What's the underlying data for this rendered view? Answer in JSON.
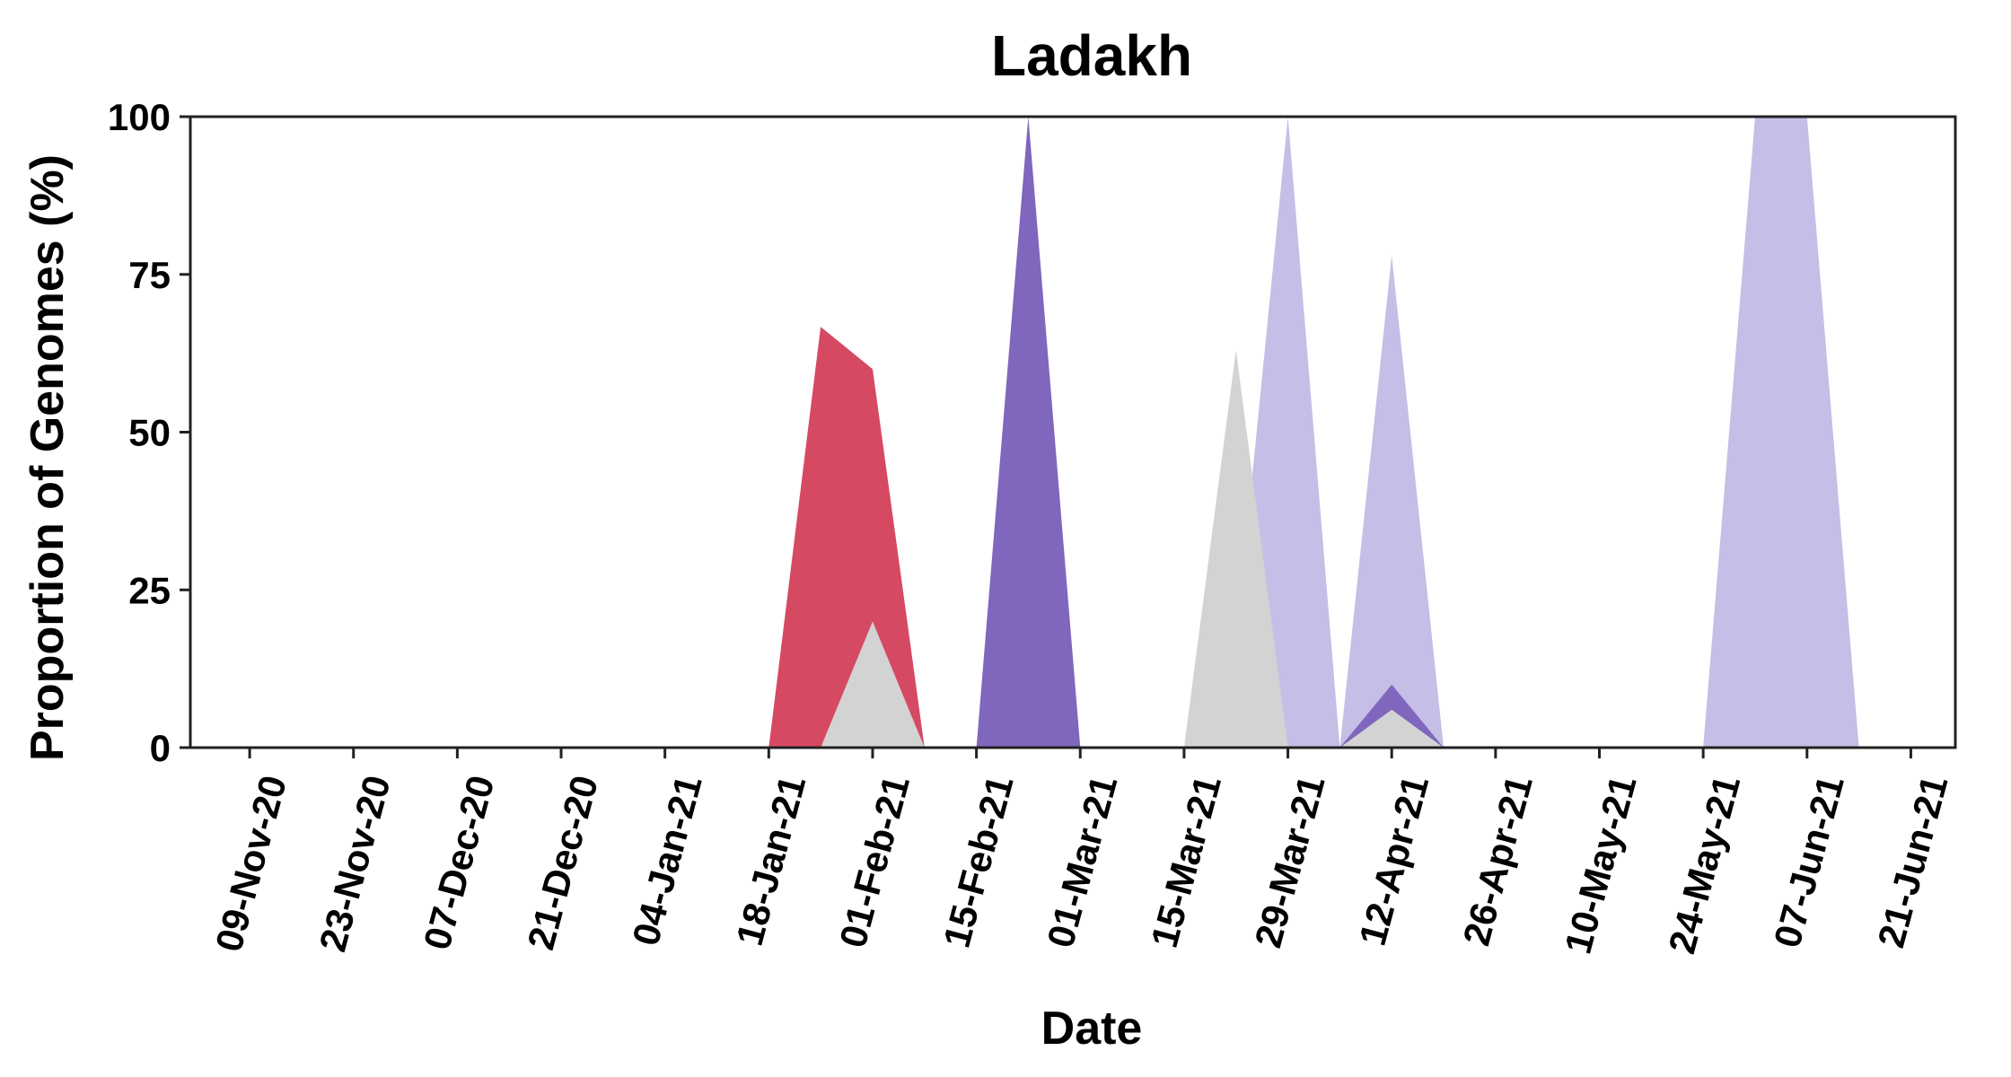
{
  "chart_data": {
    "type": "area",
    "title": "Ladakh",
    "xlabel": "Date",
    "ylabel": "Proportion of Genomes (%)",
    "ylim": [
      0,
      100
    ],
    "yticks": [
      "0",
      "25",
      "50",
      "75",
      "100"
    ],
    "x_tick_labels": [
      "09-Nov-20",
      "23-Nov-20",
      "07-Dec-20",
      "21-Dec-20",
      "04-Jan-21",
      "18-Jan-21",
      "01-Feb-21",
      "15-Feb-21",
      "01-Mar-21",
      "15-Mar-21",
      "29-Mar-21",
      "12-Apr-21",
      "26-Apr-21",
      "10-May-21",
      "24-May-21",
      "07-Jun-21",
      "21-Jun-21"
    ],
    "xlim": [
      "2020-11-01",
      "2021-06-27"
    ],
    "series": [
      {
        "color": "#36b5db",
        "points": [
          [
            "2021-01-18",
            0
          ],
          [
            "2021-01-25",
            33.3
          ],
          [
            "2021-02-01",
            20
          ],
          [
            "2021-02-08",
            0
          ]
        ]
      },
      {
        "color": "#d64963",
        "points": [
          [
            "2021-01-18",
            0
          ],
          [
            "2021-01-25",
            66.7
          ],
          [
            "2021-02-01",
            60
          ],
          [
            "2021-02-08",
            0
          ]
        ]
      },
      {
        "color": "#d3d3d3",
        "points": [
          [
            "2021-01-18",
            0
          ],
          [
            "2021-01-25",
            0
          ],
          [
            "2021-02-01",
            20
          ],
          [
            "2021-02-08",
            0
          ]
        ]
      },
      {
        "color": "#8066bd",
        "points": [
          [
            "2021-02-15",
            0
          ],
          [
            "2021-02-22",
            100
          ],
          [
            "2021-03-01",
            0
          ]
        ]
      },
      {
        "color": "#f2b07e",
        "points": [
          [
            "2021-03-15",
            0
          ],
          [
            "2021-03-22",
            20
          ],
          [
            "2021-03-29",
            0
          ]
        ]
      },
      {
        "color": "#c5bee6",
        "points": [
          [
            "2021-03-15",
            0
          ],
          [
            "2021-03-22",
            17
          ],
          [
            "2021-03-29",
            100
          ],
          [
            "2021-04-05",
            0
          ]
        ]
      },
      {
        "color": "#d3d3d3",
        "points": [
          [
            "2021-03-15",
            0
          ],
          [
            "2021-03-22",
            63
          ],
          [
            "2021-03-29",
            0
          ]
        ]
      },
      {
        "color": "#c5bee6",
        "points": [
          [
            "2021-04-05",
            0
          ],
          [
            "2021-04-12",
            78
          ],
          [
            "2021-04-19",
            0
          ]
        ]
      },
      {
        "color": "#8066bd",
        "points": [
          [
            "2021-04-05",
            0
          ],
          [
            "2021-04-12",
            10
          ],
          [
            "2021-04-19",
            0
          ]
        ]
      },
      {
        "color": "#36b5db",
        "points": [
          [
            "2021-04-05",
            0
          ],
          [
            "2021-04-12",
            6
          ],
          [
            "2021-04-19",
            0
          ]
        ]
      },
      {
        "color": "#d3d3d3",
        "points": [
          [
            "2021-04-05",
            0
          ],
          [
            "2021-04-12",
            6
          ],
          [
            "2021-04-19",
            0
          ]
        ]
      },
      {
        "color": "#c5bee6",
        "points": [
          [
            "2021-05-24",
            0
          ],
          [
            "2021-05-31",
            100
          ],
          [
            "2021-06-07",
            100
          ],
          [
            "2021-06-14",
            0
          ]
        ]
      }
    ]
  }
}
